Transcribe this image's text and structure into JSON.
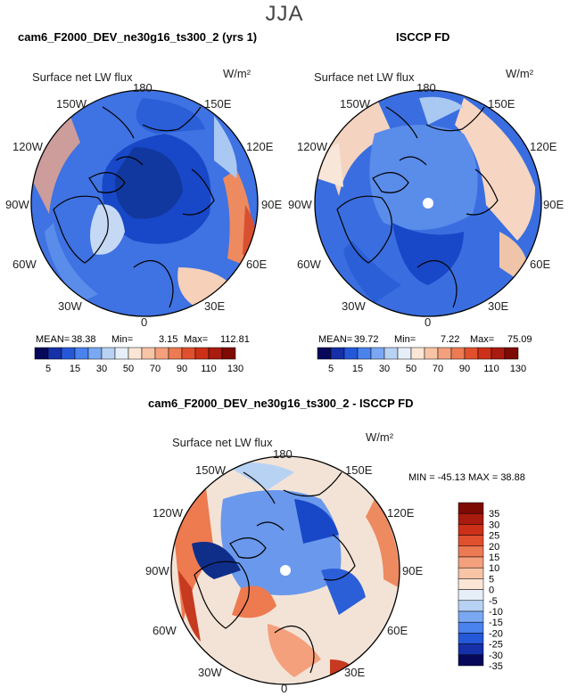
{
  "season": "JJA",
  "left_panel": {
    "title": "cam6_F2000_DEV_ne30g16_ts300_2 (yrs 1)",
    "variable": "Surface net LW flux",
    "units": "W/m²",
    "mean_label": "MEAN=",
    "mean": "38.38",
    "min_label": "Min=",
    "min": "3.15",
    "max_label": "Max=",
    "max": "112.81"
  },
  "right_panel": {
    "title": "ISCCP FD",
    "variable": "Surface net LW flux",
    "units": "W/m²",
    "mean_label": "MEAN=",
    "mean": "39.72",
    "min_label": "Min=",
    "min": "7.22",
    "max_label": "Max=",
    "max": "75.09"
  },
  "diff_panel": {
    "title": "cam6_F2000_DEV_ne30g16_ts300_2 - ISCCP FD",
    "variable": "Surface net LW flux",
    "units": "W/m²",
    "minmax": "MIN = -45.13 MAX =  38.88"
  },
  "lon_labels": {
    "top": "180",
    "bottom": "0",
    "ul1": "150W",
    "ur1": "150E",
    "ul2": "120W",
    "ur2": "120E",
    "l": "90W",
    "r": "90E",
    "ll2": "60W",
    "lr2": "60E",
    "ll1": "30W",
    "lr1": "30E"
  },
  "abs_colorbar": {
    "ticks": [
      "5",
      "15",
      "30",
      "50",
      "70",
      "90",
      "110",
      "130"
    ],
    "colors": [
      "#08085a",
      "#1530a8",
      "#2558d8",
      "#4a82ee",
      "#7ba8f2",
      "#b8d2f4",
      "#e6eef8",
      "#fbe6d6",
      "#f8c4a6",
      "#f4a07c",
      "#ec7a52",
      "#e0502e",
      "#cc3018",
      "#a81b0e",
      "#7e0a04"
    ]
  },
  "diff_colorbar": {
    "ticks": [
      "35",
      "30",
      "25",
      "20",
      "15",
      "10",
      "5",
      "0",
      "-5",
      "-10",
      "-15",
      "-20",
      "-25",
      "-30",
      "-35"
    ],
    "colors": [
      "#7e0a04",
      "#a81b0e",
      "#cc3018",
      "#e0502e",
      "#ec7a52",
      "#f4a07c",
      "#f8c4a6",
      "#fbe6d6",
      "#e6eef8",
      "#b8d2f4",
      "#7ba8f2",
      "#4a82ee",
      "#2558d8",
      "#1530a8",
      "#08085a"
    ]
  },
  "colors": {
    "deep_blue": "#1848c8",
    "mid_blue": "#3a6ee0",
    "light_blue": "#a9c8f2",
    "pale": "#f3e3d6",
    "orange": "#ee7a50",
    "red": "#c63a20"
  }
}
